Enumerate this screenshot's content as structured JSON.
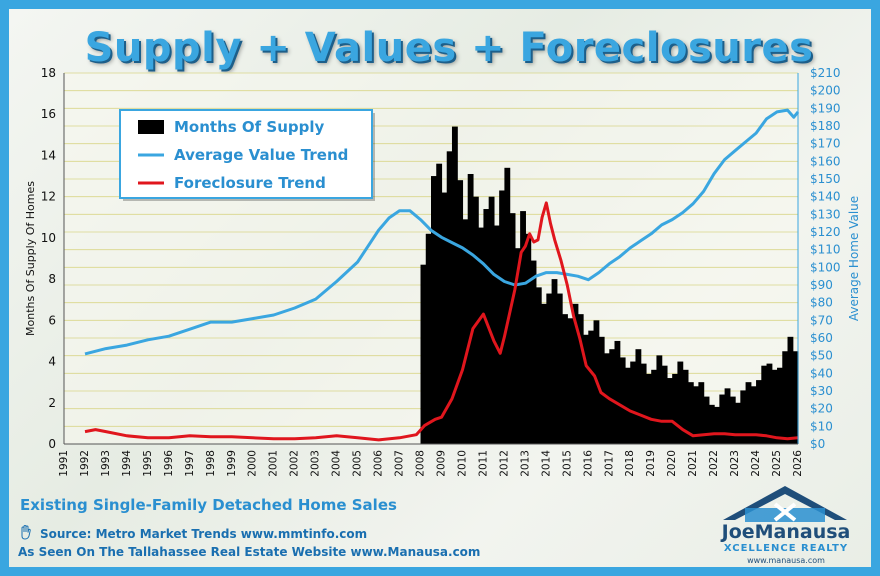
{
  "header": {
    "title": "Supply + Values + Foreclosures"
  },
  "footer": {
    "subtitle": "Existing Single-Family Detached Home Sales",
    "source": "Source:  Metro Market Trends  www.mmtinfo.com",
    "seen_on": "As Seen On The Tallahassee Real Estate Website  www.Manausa.com",
    "logo_name": "JoeManausa",
    "logo_tagline": "XCELLENCE REALTY",
    "logo_url": "www.manausa.com"
  },
  "chart_data": {
    "type": "bar",
    "title": "Supply + Values + Foreclosures",
    "xlabel": "",
    "ylabel": "Months Of Supply Of Homes",
    "y2label": "Average Home Value",
    "x_tick_labels": [
      "1991",
      "1992",
      "1993",
      "1994",
      "1995",
      "1996",
      "1997",
      "1998",
      "1999",
      "2000",
      "2001",
      "2002",
      "2003",
      "2004",
      "2005",
      "2006",
      "2007",
      "2008",
      "2009",
      "2010",
      "2011",
      "2012",
      "2013",
      "2014",
      "2015",
      "2016",
      "2017",
      "2018",
      "2019",
      "2020",
      "2021",
      "2022",
      "2023",
      "2024",
      "2025",
      "2026"
    ],
    "y_tick_labels": [
      "0",
      "2",
      "4",
      "6",
      "8",
      "10",
      "12",
      "14",
      "16",
      "18"
    ],
    "y2_tick_labels": [
      "$0",
      "$10",
      "$20",
      "$30",
      "$40",
      "$50",
      "$60",
      "$70",
      "$80",
      "$90",
      "$100",
      "$110",
      "$120",
      "$130",
      "$140",
      "$150",
      "$160",
      "$170",
      "$180",
      "$190",
      "$200",
      "$210"
    ],
    "xlim": [
      1991,
      2026
    ],
    "ylim": [
      0,
      18
    ],
    "y2lim": [
      0,
      210
    ],
    "grid": true,
    "legend_position": "top-left",
    "series": [
      {
        "name": "Months Of Supply",
        "type": "bar",
        "axis": "left",
        "color": "#000000",
        "points": [
          [
            2008.0,
            8.7
          ],
          [
            2008.25,
            10.2
          ],
          [
            2008.5,
            13.0
          ],
          [
            2008.75,
            13.6
          ],
          [
            2009.0,
            12.2
          ],
          [
            2009.25,
            14.2
          ],
          [
            2009.5,
            15.4
          ],
          [
            2009.75,
            12.8
          ],
          [
            2010.0,
            10.9
          ],
          [
            2010.25,
            13.1
          ],
          [
            2010.5,
            12.0
          ],
          [
            2010.75,
            10.5
          ],
          [
            2011.0,
            11.4
          ],
          [
            2011.25,
            12.0
          ],
          [
            2011.5,
            10.6
          ],
          [
            2011.75,
            12.3
          ],
          [
            2012.0,
            13.4
          ],
          [
            2012.25,
            11.2
          ],
          [
            2012.5,
            9.5
          ],
          [
            2012.75,
            11.3
          ],
          [
            2013.0,
            10.2
          ],
          [
            2013.25,
            8.9
          ],
          [
            2013.5,
            7.6
          ],
          [
            2013.75,
            6.8
          ],
          [
            2014.0,
            7.3
          ],
          [
            2014.25,
            8.0
          ],
          [
            2014.5,
            7.3
          ],
          [
            2014.75,
            6.3
          ],
          [
            2015.0,
            6.1
          ],
          [
            2015.25,
            6.8
          ],
          [
            2015.5,
            6.3
          ],
          [
            2015.75,
            5.3
          ],
          [
            2016.0,
            5.5
          ],
          [
            2016.25,
            6.0
          ],
          [
            2016.5,
            5.2
          ],
          [
            2016.75,
            4.4
          ],
          [
            2017.0,
            4.6
          ],
          [
            2017.25,
            5.0
          ],
          [
            2017.5,
            4.2
          ],
          [
            2017.75,
            3.7
          ],
          [
            2018.0,
            4.0
          ],
          [
            2018.25,
            4.6
          ],
          [
            2018.5,
            3.9
          ],
          [
            2018.75,
            3.4
          ],
          [
            2019.0,
            3.6
          ],
          [
            2019.25,
            4.3
          ],
          [
            2019.5,
            3.8
          ],
          [
            2019.75,
            3.2
          ],
          [
            2020.0,
            3.4
          ],
          [
            2020.25,
            4.0
          ],
          [
            2020.5,
            3.6
          ],
          [
            2020.75,
            3.0
          ],
          [
            2021.0,
            2.8
          ],
          [
            2021.25,
            3.0
          ],
          [
            2021.5,
            2.3
          ],
          [
            2021.75,
            1.9
          ],
          [
            2022.0,
            1.8
          ],
          [
            2022.25,
            2.4
          ],
          [
            2022.5,
            2.7
          ],
          [
            2022.75,
            2.3
          ],
          [
            2023.0,
            2.0
          ],
          [
            2023.25,
            2.6
          ],
          [
            2023.5,
            3.0
          ],
          [
            2023.75,
            2.8
          ],
          [
            2024.0,
            3.1
          ],
          [
            2024.25,
            3.8
          ],
          [
            2024.5,
            3.9
          ],
          [
            2024.75,
            3.6
          ],
          [
            2025.0,
            3.7
          ],
          [
            2025.25,
            4.5
          ],
          [
            2025.5,
            5.2
          ],
          [
            2025.75,
            4.5
          ]
        ]
      },
      {
        "name": "Average Value Trend",
        "type": "line",
        "axis": "right",
        "color": "#3aa6e0",
        "points": [
          [
            1992,
            51
          ],
          [
            1993,
            54
          ],
          [
            1994,
            56
          ],
          [
            1995,
            59
          ],
          [
            1996,
            61
          ],
          [
            1997,
            65
          ],
          [
            1998,
            69
          ],
          [
            1999,
            69
          ],
          [
            2000,
            71
          ],
          [
            2001,
            73
          ],
          [
            2002,
            77
          ],
          [
            2003,
            82
          ],
          [
            2004,
            92
          ],
          [
            2005,
            103
          ],
          [
            2006,
            121
          ],
          [
            2006.5,
            128
          ],
          [
            2007,
            132
          ],
          [
            2007.5,
            132
          ],
          [
            2008,
            127
          ],
          [
            2008.5,
            121
          ],
          [
            2009,
            117
          ],
          [
            2009.5,
            114
          ],
          [
            2010,
            111
          ],
          [
            2010.5,
            107
          ],
          [
            2011,
            102
          ],
          [
            2011.5,
            96
          ],
          [
            2012,
            92
          ],
          [
            2012.5,
            90
          ],
          [
            2013,
            91
          ],
          [
            2013.5,
            95
          ],
          [
            2014,
            97
          ],
          [
            2014.5,
            97
          ],
          [
            2015,
            96
          ],
          [
            2015.5,
            95
          ],
          [
            2016,
            93
          ],
          [
            2016.5,
            97
          ],
          [
            2017,
            102
          ],
          [
            2017.5,
            106
          ],
          [
            2018,
            111
          ],
          [
            2018.5,
            115
          ],
          [
            2019,
            119
          ],
          [
            2019.5,
            124
          ],
          [
            2020,
            127
          ],
          [
            2020.5,
            131
          ],
          [
            2021,
            136
          ],
          [
            2021.5,
            143
          ],
          [
            2022,
            153
          ],
          [
            2022.5,
            161
          ],
          [
            2023,
            166
          ],
          [
            2023.5,
            171
          ],
          [
            2024,
            176
          ],
          [
            2024.5,
            184
          ],
          [
            2025,
            188
          ],
          [
            2025.5,
            189
          ],
          [
            2025.8,
            185
          ],
          [
            2026,
            188
          ]
        ]
      },
      {
        "name": "Foreclosure Trend",
        "type": "line",
        "axis": "left",
        "color": "#e0161d",
        "points": [
          [
            1992,
            0.6
          ],
          [
            1992.5,
            0.7
          ],
          [
            1993,
            0.6
          ],
          [
            1994,
            0.4
          ],
          [
            1995,
            0.3
          ],
          [
            1996,
            0.3
          ],
          [
            1997,
            0.4
          ],
          [
            1998,
            0.35
          ],
          [
            1999,
            0.35
          ],
          [
            2000,
            0.3
          ],
          [
            2001,
            0.25
          ],
          [
            2002,
            0.25
          ],
          [
            2003,
            0.3
          ],
          [
            2004,
            0.4
          ],
          [
            2005,
            0.3
          ],
          [
            2006,
            0.2
          ],
          [
            2007,
            0.3
          ],
          [
            2007.8,
            0.45
          ],
          [
            2008.2,
            0.9
          ],
          [
            2008.7,
            1.2
          ],
          [
            2009,
            1.3
          ],
          [
            2009.5,
            2.2
          ],
          [
            2010,
            3.6
          ],
          [
            2010.5,
            5.6
          ],
          [
            2011,
            6.3
          ],
          [
            2011.5,
            5.0
          ],
          [
            2011.8,
            4.4
          ],
          [
            2012,
            5.2
          ],
          [
            2012.5,
            7.5
          ],
          [
            2012.8,
            9.3
          ],
          [
            2013,
            9.6
          ],
          [
            2013.2,
            10.2
          ],
          [
            2013.4,
            9.8
          ],
          [
            2013.6,
            9.9
          ],
          [
            2013.8,
            11.0
          ],
          [
            2014,
            11.7
          ],
          [
            2014.2,
            10.7
          ],
          [
            2014.4,
            9.9
          ],
          [
            2014.7,
            8.9
          ],
          [
            2015,
            7.7
          ],
          [
            2015.3,
            6.2
          ],
          [
            2015.6,
            5.1
          ],
          [
            2015.9,
            3.8
          ],
          [
            2016.3,
            3.3
          ],
          [
            2016.6,
            2.5
          ],
          [
            2017,
            2.2
          ],
          [
            2017.5,
            1.9
          ],
          [
            2018,
            1.6
          ],
          [
            2018.5,
            1.4
          ],
          [
            2019,
            1.2
          ],
          [
            2019.5,
            1.1
          ],
          [
            2020,
            1.1
          ],
          [
            2020.5,
            0.7
          ],
          [
            2021,
            0.4
          ],
          [
            2021.5,
            0.45
          ],
          [
            2022,
            0.5
          ],
          [
            2022.5,
            0.5
          ],
          [
            2023,
            0.45
          ],
          [
            2023.5,
            0.45
          ],
          [
            2024,
            0.45
          ],
          [
            2024.5,
            0.4
          ],
          [
            2025,
            0.3
          ],
          [
            2025.5,
            0.25
          ],
          [
            2026,
            0.3
          ]
        ]
      }
    ]
  },
  "colors": {
    "accent": "#3aa6e0",
    "supply": "#000000",
    "value": "#3aa6e0",
    "foreclosure": "#e0161d"
  },
  "icons": {
    "source": "hand-icon",
    "logo": "house-logo-icon"
  }
}
